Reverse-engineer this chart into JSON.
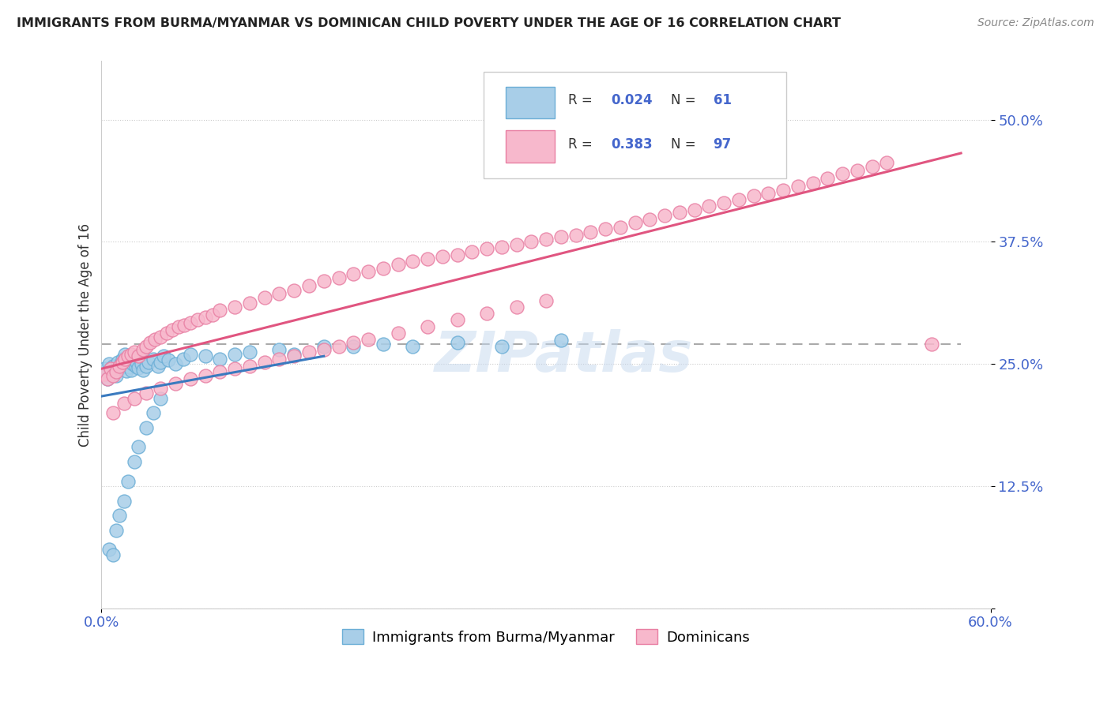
{
  "title": "IMMIGRANTS FROM BURMA/MYANMAR VS DOMINICAN CHILD POVERTY UNDER THE AGE OF 16 CORRELATION CHART",
  "source": "Source: ZipAtlas.com",
  "ylabel": "Child Poverty Under the Age of 16",
  "xlim": [
    0.0,
    0.6
  ],
  "ylim": [
    0.0,
    0.56
  ],
  "yticks": [
    0.0,
    0.125,
    0.25,
    0.375,
    0.5
  ],
  "ytick_labels": [
    "",
    "12.5%",
    "25.0%",
    "37.5%",
    "50.0%"
  ],
  "xtick_labels": [
    "0.0%",
    "60.0%"
  ],
  "color_blue_fill": "#a8cee8",
  "color_blue_edge": "#6baed6",
  "color_pink_fill": "#f7b8cc",
  "color_pink_edge": "#e87fa3",
  "color_blue_line": "#3a7abf",
  "color_pink_line": "#e05580",
  "color_dashed": "#aaaaaa",
  "color_tick": "#4466cc",
  "color_ylabel": "#333333",
  "watermark_text": "ZIPatlas",
  "watermark_color": "#c5d8ee",
  "legend_label1": "Immigrants from Burma/Myanmar",
  "legend_label2": "Dominicans",
  "blue_x": [
    0.002,
    0.003,
    0.004,
    0.005,
    0.006,
    0.007,
    0.008,
    0.009,
    0.01,
    0.011,
    0.012,
    0.013,
    0.014,
    0.015,
    0.016,
    0.017,
    0.018,
    0.019,
    0.02,
    0.021,
    0.022,
    0.023,
    0.024,
    0.025,
    0.026,
    0.027,
    0.028,
    0.03,
    0.032,
    0.035,
    0.038,
    0.04,
    0.042,
    0.045,
    0.05,
    0.055,
    0.06,
    0.07,
    0.08,
    0.09,
    0.1,
    0.12,
    0.13,
    0.15,
    0.17,
    0.19,
    0.21,
    0.24,
    0.27,
    0.31,
    0.005,
    0.008,
    0.01,
    0.012,
    0.015,
    0.018,
    0.022,
    0.025,
    0.03,
    0.035,
    0.04
  ],
  "blue_y": [
    0.245,
    0.24,
    0.235,
    0.25,
    0.245,
    0.24,
    0.248,
    0.242,
    0.238,
    0.252,
    0.245,
    0.25,
    0.255,
    0.248,
    0.26,
    0.243,
    0.252,
    0.247,
    0.244,
    0.25,
    0.255,
    0.248,
    0.252,
    0.246,
    0.258,
    0.25,
    0.244,
    0.248,
    0.252,
    0.255,
    0.248,
    0.252,
    0.258,
    0.254,
    0.25,
    0.255,
    0.26,
    0.258,
    0.255,
    0.26,
    0.262,
    0.265,
    0.26,
    0.268,
    0.268,
    0.27,
    0.268,
    0.272,
    0.268,
    0.274,
    0.06,
    0.055,
    0.08,
    0.095,
    0.11,
    0.13,
    0.15,
    0.165,
    0.185,
    0.2,
    0.215
  ],
  "pink_x": [
    0.002,
    0.004,
    0.006,
    0.008,
    0.01,
    0.012,
    0.014,
    0.016,
    0.018,
    0.02,
    0.022,
    0.025,
    0.028,
    0.03,
    0.033,
    0.036,
    0.04,
    0.044,
    0.048,
    0.052,
    0.056,
    0.06,
    0.065,
    0.07,
    0.075,
    0.08,
    0.09,
    0.1,
    0.11,
    0.12,
    0.13,
    0.14,
    0.15,
    0.16,
    0.17,
    0.18,
    0.19,
    0.2,
    0.21,
    0.22,
    0.23,
    0.24,
    0.25,
    0.26,
    0.27,
    0.28,
    0.29,
    0.3,
    0.31,
    0.32,
    0.33,
    0.34,
    0.35,
    0.36,
    0.37,
    0.38,
    0.39,
    0.4,
    0.41,
    0.42,
    0.43,
    0.44,
    0.45,
    0.46,
    0.47,
    0.48,
    0.49,
    0.5,
    0.51,
    0.52,
    0.53,
    0.008,
    0.015,
    0.022,
    0.03,
    0.04,
    0.05,
    0.06,
    0.07,
    0.08,
    0.09,
    0.1,
    0.11,
    0.12,
    0.13,
    0.14,
    0.15,
    0.16,
    0.17,
    0.18,
    0.2,
    0.22,
    0.24,
    0.26,
    0.28,
    0.3,
    0.56
  ],
  "pink_y": [
    0.24,
    0.235,
    0.245,
    0.238,
    0.242,
    0.248,
    0.252,
    0.255,
    0.258,
    0.26,
    0.262,
    0.258,
    0.265,
    0.268,
    0.272,
    0.275,
    0.278,
    0.282,
    0.285,
    0.288,
    0.29,
    0.292,
    0.295,
    0.298,
    0.3,
    0.305,
    0.308,
    0.312,
    0.318,
    0.322,
    0.325,
    0.33,
    0.335,
    0.338,
    0.342,
    0.345,
    0.348,
    0.352,
    0.355,
    0.358,
    0.36,
    0.362,
    0.365,
    0.368,
    0.37,
    0.372,
    0.375,
    0.378,
    0.38,
    0.382,
    0.385,
    0.388,
    0.39,
    0.395,
    0.398,
    0.402,
    0.405,
    0.408,
    0.412,
    0.415,
    0.418,
    0.422,
    0.425,
    0.428,
    0.432,
    0.435,
    0.44,
    0.445,
    0.448,
    0.452,
    0.456,
    0.2,
    0.21,
    0.215,
    0.22,
    0.225,
    0.23,
    0.235,
    0.238,
    0.242,
    0.245,
    0.248,
    0.252,
    0.255,
    0.258,
    0.262,
    0.265,
    0.268,
    0.272,
    0.275,
    0.282,
    0.288,
    0.295,
    0.302,
    0.308,
    0.315,
    0.27
  ]
}
